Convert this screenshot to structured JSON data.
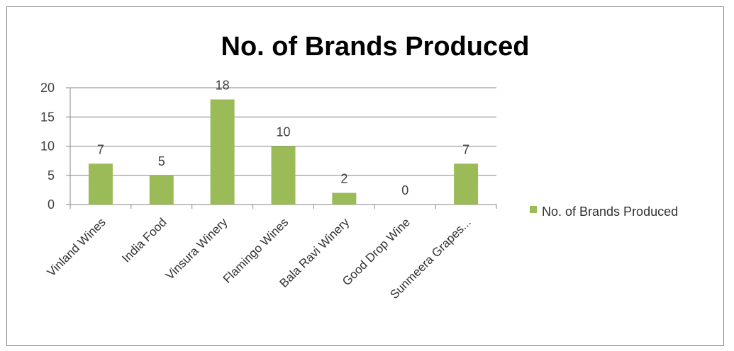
{
  "chart_data": {
    "type": "bar",
    "title": "No. of Brands Produced",
    "categories": [
      "Vinland Wines",
      "India Food",
      "Vinsura Winery",
      "Flamingo Wines",
      "Bala Ravi Winery",
      "Good Drop Wine",
      "Sunmeera Grapes..."
    ],
    "series": [
      {
        "name": "No. of Brands Produced",
        "values": [
          7,
          5,
          18,
          10,
          2,
          0,
          7
        ],
        "color": "#9bbb59"
      }
    ],
    "ylim": [
      0,
      20
    ],
    "yticks": [
      0,
      5,
      10,
      15,
      20
    ],
    "xlabel": "",
    "ylabel": "",
    "grid": true,
    "data_labels": true,
    "legend_position": "right"
  }
}
